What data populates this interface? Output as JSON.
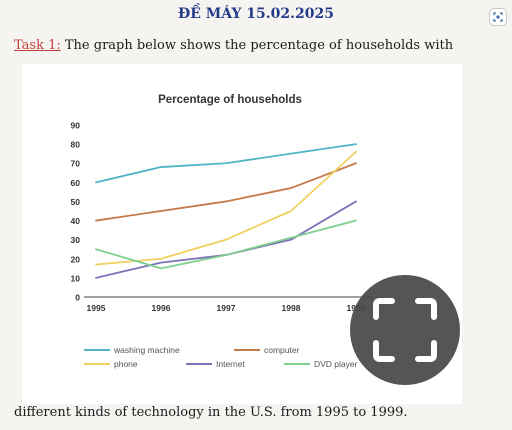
{
  "document": {
    "heading": "ĐỀ MÁY 15.02.2025",
    "task_label": "Task 1:",
    "task_text": " The graph below shows the percentage of households with",
    "footer_text": "different kinds of technology in the U.S. from 1995 to 1999."
  },
  "chart_data": {
    "type": "line",
    "title": "Percentage of households",
    "xlabel": "",
    "ylabel": "",
    "categories": [
      "1995",
      "1996",
      "1997",
      "1998",
      "1999"
    ],
    "ylim": [
      0,
      90
    ],
    "yticks": [
      0,
      10,
      20,
      30,
      40,
      50,
      60,
      70,
      80,
      90
    ],
    "grid": false,
    "legend_position": "bottom",
    "series": [
      {
        "name": "washing machine",
        "color": "#4fb3c9",
        "values": [
          60,
          68,
          70,
          75,
          80
        ]
      },
      {
        "name": "computer",
        "color": "#c57a4a",
        "values": [
          40,
          45,
          50,
          57,
          70
        ]
      },
      {
        "name": "phone",
        "color": "#f0d160",
        "values": [
          17,
          20,
          30,
          45,
          76
        ]
      },
      {
        "name": "Internet",
        "color": "#7b74b8",
        "values": [
          10,
          18,
          22,
          30,
          50
        ]
      },
      {
        "name": "DVD player",
        "color": "#7fcf8e",
        "values": [
          25,
          15,
          22,
          31,
          40
        ]
      }
    ]
  },
  "overlay": {
    "icon": "fullscreen-icon"
  },
  "toolbar": {
    "icon": "scan-icon"
  }
}
